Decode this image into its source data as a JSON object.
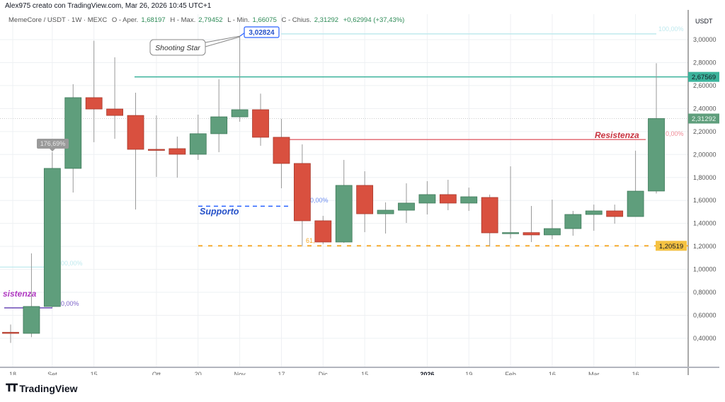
{
  "header": {
    "credit": "Alex975 creato con TradingView.com, Mar 26, 2026 10:45 UTC+1"
  },
  "legend": {
    "symbol": "MemeCore / USDT · 1W · MEXC",
    "open_label": "O - Aper.",
    "open": "1,68197",
    "high_label": "H - Max.",
    "high": "2,79452",
    "low_label": "L - Min.",
    "low": "1,66075",
    "close_label": "C - Chius.",
    "close": "2,31292",
    "change": "+0,62994 (+37,43%)"
  },
  "footer": {
    "brand": "TradingView",
    "logo_mark": "17"
  },
  "colors": {
    "up": "#5f9e7c",
    "down": "#d9503f",
    "teal": "#3bb39b",
    "resist_red": "#e0606a",
    "support_blue": "#2962ff",
    "fib_orange": "#f5a623",
    "purple": "#6c4ab6",
    "grid": "#eef0f3"
  },
  "chart_data": {
    "type": "candlestick",
    "title": "",
    "y_unit": "USDT",
    "ylim": [
      0.28,
      3.22
    ],
    "y_ticks": [
      "3,00000",
      "2,80000",
      "2,60000",
      "2,40000",
      "2,20000",
      "2,00000",
      "1,80000",
      "1,60000",
      "1,40000",
      "1,20000",
      "1,00000",
      "0,80000",
      "0,60000",
      "0,40000"
    ],
    "y_tick_values": [
      3.0,
      2.8,
      2.6,
      2.4,
      2.2,
      2.0,
      1.8,
      1.6,
      1.4,
      1.2,
      1.0,
      0.8,
      0.6,
      0.4
    ],
    "x_ticks": [
      {
        "label": "18",
        "candle": 0
      },
      {
        "label": "Set",
        "candle": 2
      },
      {
        "label": "15",
        "candle": 4
      },
      {
        "label": "Ott",
        "candle": 7
      },
      {
        "label": "20",
        "candle": 9
      },
      {
        "label": "Nov",
        "candle": 11
      },
      {
        "label": "17",
        "candle": 13
      },
      {
        "label": "Dic",
        "candle": 15
      },
      {
        "label": "15",
        "candle": 17
      },
      {
        "label": "2026",
        "candle": 20,
        "bold": true
      },
      {
        "label": "19",
        "candle": 22
      },
      {
        "label": "Feb",
        "candle": 24
      },
      {
        "label": "16",
        "candle": 26
      },
      {
        "label": "Mar",
        "candle": 28
      },
      {
        "label": "16",
        "candle": 30
      }
    ],
    "candles": [
      {
        "o": 0.452,
        "h": 0.52,
        "l": 0.36,
        "c": 0.445
      },
      {
        "o": 0.443,
        "h": 1.139,
        "l": 0.41,
        "c": 0.677
      },
      {
        "o": 0.677,
        "h": 2.02,
        "l": 0.67,
        "c": 1.879
      },
      {
        "o": 1.879,
        "h": 2.612,
        "l": 1.669,
        "c": 2.495
      },
      {
        "o": 2.495,
        "h": 2.99,
        "l": 2.107,
        "c": 2.396
      },
      {
        "o": 2.396,
        "h": 2.846,
        "l": 2.137,
        "c": 2.34
      },
      {
        "o": 2.34,
        "h": 2.538,
        "l": 1.521,
        "c": 2.045
      },
      {
        "o": 2.045,
        "h": 2.34,
        "l": 1.805,
        "c": 2.04
      },
      {
        "o": 2.051,
        "h": 2.156,
        "l": 1.799,
        "c": 2.002
      },
      {
        "o": 2.002,
        "h": 2.347,
        "l": 1.953,
        "c": 2.181
      },
      {
        "o": 2.181,
        "h": 2.655,
        "l": 2.02,
        "c": 2.328
      },
      {
        "o": 2.328,
        "h": 3.02824,
        "l": 2.285,
        "c": 2.39
      },
      {
        "o": 2.39,
        "h": 2.53,
        "l": 2.076,
        "c": 2.15
      },
      {
        "o": 2.15,
        "h": 2.31,
        "l": 1.706,
        "c": 1.922
      },
      {
        "o": 1.922,
        "h": 2.088,
        "l": 1.2,
        "c": 1.423
      },
      {
        "o": 1.423,
        "h": 1.466,
        "l": 1.22,
        "c": 1.238
      },
      {
        "o": 1.238,
        "h": 1.953,
        "l": 1.23,
        "c": 1.731
      },
      {
        "o": 1.731,
        "h": 1.854,
        "l": 1.324,
        "c": 1.484
      },
      {
        "o": 1.484,
        "h": 1.583,
        "l": 1.312,
        "c": 1.515
      },
      {
        "o": 1.515,
        "h": 1.749,
        "l": 1.404,
        "c": 1.577
      },
      {
        "o": 1.577,
        "h": 1.768,
        "l": 1.478,
        "c": 1.651
      },
      {
        "o": 1.651,
        "h": 1.78,
        "l": 1.515,
        "c": 1.577
      },
      {
        "o": 1.577,
        "h": 1.712,
        "l": 1.509,
        "c": 1.632
      },
      {
        "o": 1.626,
        "h": 1.651,
        "l": 1.2,
        "c": 1.318
      },
      {
        "o": 1.318,
        "h": 1.897,
        "l": 1.27,
        "c": 1.32
      },
      {
        "o": 1.32,
        "h": 1.552,
        "l": 1.238,
        "c": 1.3
      },
      {
        "o": 1.3,
        "h": 1.607,
        "l": 1.263,
        "c": 1.355
      },
      {
        "o": 1.355,
        "h": 1.509,
        "l": 1.293,
        "c": 1.478
      },
      {
        "o": 1.478,
        "h": 1.564,
        "l": 1.336,
        "c": 1.509
      },
      {
        "o": 1.509,
        "h": 1.564,
        "l": 1.398,
        "c": 1.46
      },
      {
        "o": 1.46,
        "h": 2.033,
        "l": 1.46,
        "c": 1.681
      },
      {
        "o": 1.68197,
        "h": 2.79452,
        "l": 1.66075,
        "c": 2.31292
      }
    ],
    "price_labels": [
      {
        "value": 2.67569,
        "text": "2,67569",
        "color": "#3bb39b"
      },
      {
        "value": 2.31292,
        "text": "2,31292",
        "color": "#5f9e7c"
      },
      {
        "value": 1.20519,
        "text": "1,20519",
        "color": "#f5c242"
      }
    ],
    "annotations": {
      "shooting_star": "Shooting Star",
      "high_callout": "3,02824",
      "high_value": 3.02824,
      "pct_tag": "176,69%",
      "resistance_label": "Resistenza",
      "resistance_level": 2.13,
      "resistance_pct": "0,00%",
      "support_label": "Supporto",
      "support_level": 1.55,
      "support_pct": "0,00%",
      "fib_level": 1.20519,
      "fib_label": "61,",
      "fib_top_level": 3.05,
      "fib_top_pct": "100,00%",
      "old_resistance_label": "sistenza",
      "old_resistance_level": 0.665,
      "old_resistance_pct": "0,00%",
      "old_fib_level": 1.02,
      "old_fib_pct": "00,00%"
    }
  }
}
